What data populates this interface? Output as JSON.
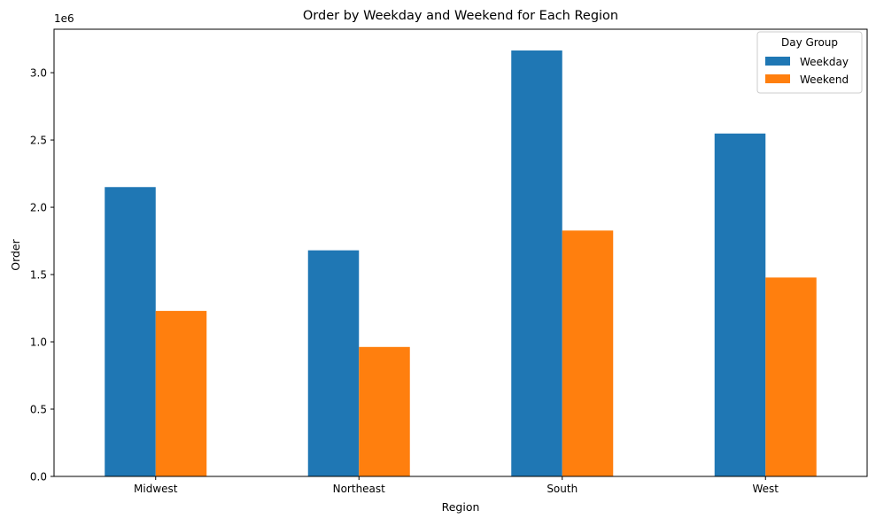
{
  "chart_data": {
    "type": "bar",
    "title": "Order by Weekday and Weekend for Each Region",
    "xlabel": "Region",
    "ylabel": "Order",
    "y_offset_label": "1e6",
    "categories": [
      "Midwest",
      "Northeast",
      "South",
      "West"
    ],
    "series": [
      {
        "name": "Weekday",
        "color": "#1f77b4",
        "values": [
          2150000,
          1680000,
          3165000,
          2548000
        ]
      },
      {
        "name": "Weekend",
        "color": "#ff7f0e",
        "values": [
          1230000,
          962000,
          1827000,
          1478000
        ]
      }
    ],
    "ylim": [
      0,
      3323000
    ],
    "yticks": [
      0,
      500000,
      1000000,
      1500000,
      2000000,
      2500000,
      3000000
    ],
    "ytick_labels": [
      "0.0",
      "0.5",
      "1.0",
      "1.5",
      "2.0",
      "2.5",
      "3.0"
    ],
    "legend": {
      "title": "Day Group",
      "position": "top-right"
    },
    "grid": false
  }
}
